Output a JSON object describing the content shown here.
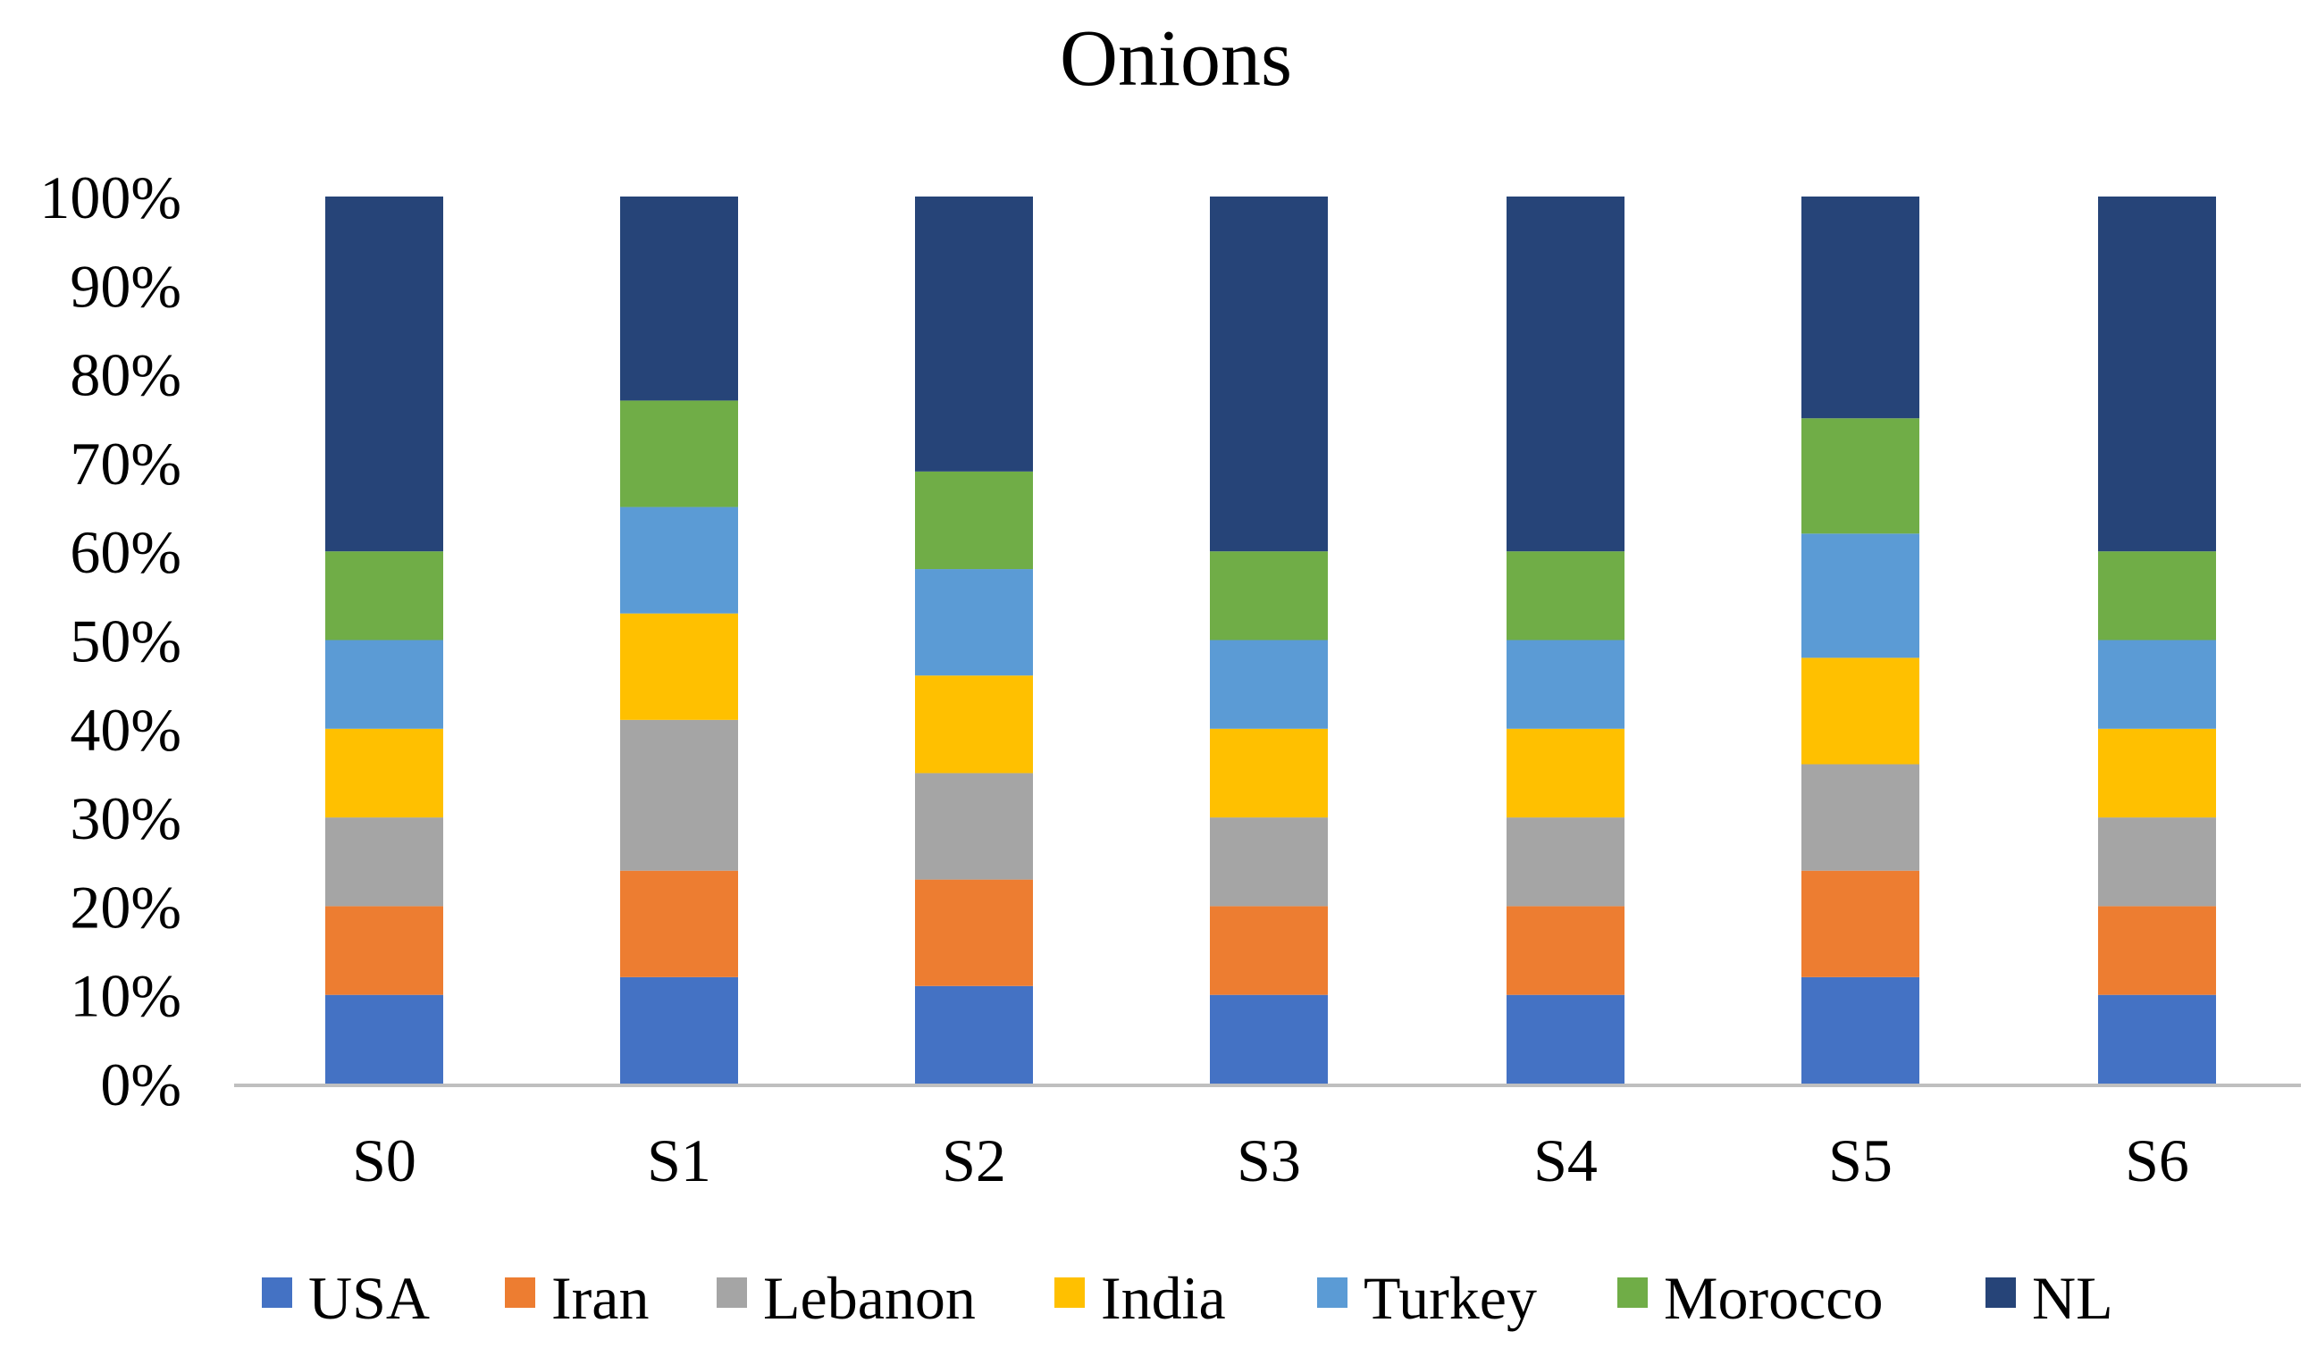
{
  "chart_data": {
    "type": "bar",
    "stacked": true,
    "normalized": true,
    "title": "Onions",
    "xlabel": "",
    "ylabel": "",
    "ylim": [
      0,
      100
    ],
    "yticks": [
      "0%",
      "10%",
      "20%",
      "30%",
      "40%",
      "50%",
      "60%",
      "70%",
      "80%",
      "90%",
      "100%"
    ],
    "categories": [
      "S0",
      "S1",
      "S2",
      "S3",
      "S4",
      "S5",
      "S6"
    ],
    "grid": false,
    "legend_position": "bottom",
    "series": [
      {
        "name": "USA",
        "color": "#4472C4",
        "values": [
          10,
          12,
          11,
          10,
          10,
          12,
          10
        ]
      },
      {
        "name": "Iran",
        "color": "#ED7D31",
        "values": [
          10,
          12,
          12,
          10,
          10,
          12,
          10
        ]
      },
      {
        "name": "Lebanon",
        "color": "#A5A5A5",
        "values": [
          10,
          17,
          12,
          10,
          10,
          12,
          10
        ]
      },
      {
        "name": "India",
        "color": "#FFC000",
        "values": [
          10,
          12,
          11,
          10,
          10,
          12,
          10
        ]
      },
      {
        "name": "Turkey",
        "color": "#5B9BD5",
        "values": [
          10,
          12,
          12,
          10,
          10,
          14,
          10
        ]
      },
      {
        "name": "Morocco",
        "color": "#70AD47",
        "values": [
          10,
          12,
          11,
          10,
          10,
          13,
          10
        ]
      },
      {
        "name": "NL",
        "color": "#264478",
        "values": [
          40,
          23,
          31,
          40,
          40,
          25,
          40
        ]
      }
    ]
  }
}
